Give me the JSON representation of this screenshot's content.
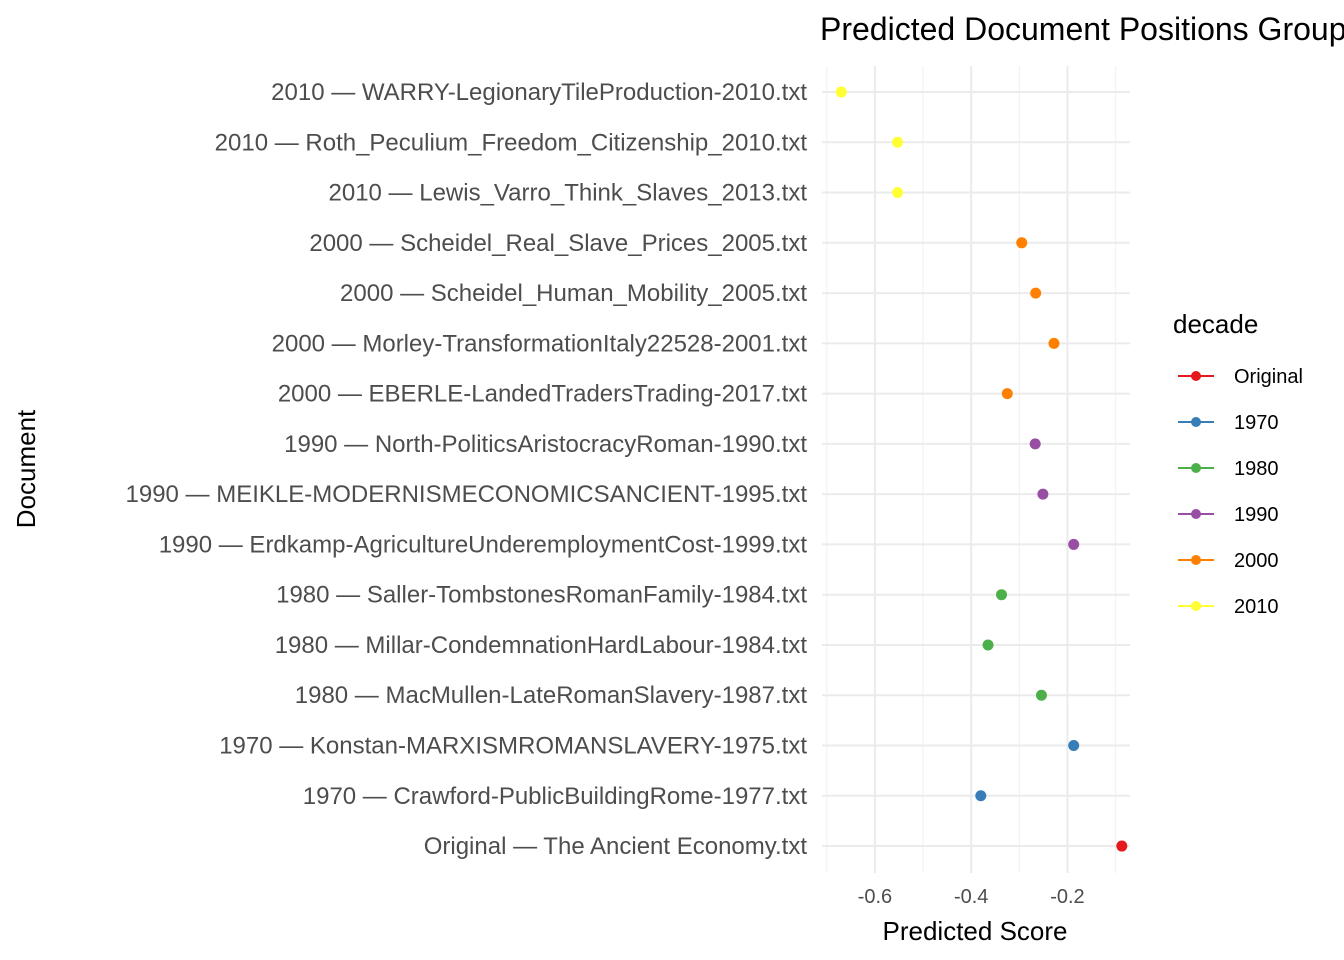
{
  "chart_data": {
    "type": "scatter",
    "title": "Predicted Document Positions Grouped by Decade",
    "xlabel": "Predicted Score",
    "ylabel": "Document",
    "xlim": [
      -0.71,
      -0.07
    ],
    "x_ticks": [
      -0.6,
      -0.4,
      -0.2
    ],
    "x_tick_labels": [
      "-0.6",
      "-0.4",
      "-0.2"
    ],
    "grid": true,
    "legend": {
      "title": "decade",
      "placement": "right",
      "entries": [
        {
          "name": "Original",
          "color": "#E41A1C"
        },
        {
          "name": "1970",
          "color": "#377EB8"
        },
        {
          "name": "1980",
          "color": "#4DAF4A"
        },
        {
          "name": "1990",
          "color": "#984EA3"
        },
        {
          "name": "2000",
          "color": "#FF7F00"
        },
        {
          "name": "2010",
          "color": "#FFFF33"
        }
      ]
    },
    "points": [
      {
        "label": "2010 — WARRY-LegionaryTileProduction-2010.txt",
        "decade": "2010",
        "x": -0.67
      },
      {
        "label": "2010 — Roth_Peculium_Freedom_Citizenship_2010.txt",
        "decade": "2010",
        "x": -0.553
      },
      {
        "label": "2010 — Lewis_Varro_Think_Slaves_2013.txt",
        "decade": "2010",
        "x": -0.553
      },
      {
        "label": "2000 — Scheidel_Real_Slave_Prices_2005.txt",
        "decade": "2000",
        "x": -0.295
      },
      {
        "label": "2000 — Scheidel_Human_Mobility_2005.txt",
        "decade": "2000",
        "x": -0.266
      },
      {
        "label": "2000 — Morley-TransformationItaly22528-2001.txt",
        "decade": "2000",
        "x": -0.228
      },
      {
        "label": "2000 — EBERLE-LandedTradersTrading-2017.txt",
        "decade": "2000",
        "x": -0.325
      },
      {
        "label": "1990 — North-PoliticsAristocracyRoman-1990.txt",
        "decade": "1990",
        "x": -0.267
      },
      {
        "label": "1990 — MEIKLE-MODERNISMECONOMICSANCIENT-1995.txt",
        "decade": "1990",
        "x": -0.251
      },
      {
        "label": "1990 — Erdkamp-AgricultureUnderemploymentCost-1999.txt",
        "decade": "1990",
        "x": -0.187
      },
      {
        "label": "1980 — Saller-TombstonesRomanFamily-1984.txt",
        "decade": "1980",
        "x": -0.337
      },
      {
        "label": "1980 — Millar-CondemnationHardLabour-1984.txt",
        "decade": "1980",
        "x": -0.365
      },
      {
        "label": "1980 — MacMullen-LateRomanSlavery-1987.txt",
        "decade": "1980",
        "x": -0.254
      },
      {
        "label": "1970 — Konstan-MARXISMROMANSLAVERY-1975.txt",
        "decade": "1970",
        "x": -0.187
      },
      {
        "label": "1970 — Crawford-PublicBuildingRome-1977.txt",
        "decade": "1970",
        "x": -0.38
      },
      {
        "label": "Original — The Ancient Economy.txt",
        "decade": "Original",
        "x": -0.087
      }
    ]
  }
}
